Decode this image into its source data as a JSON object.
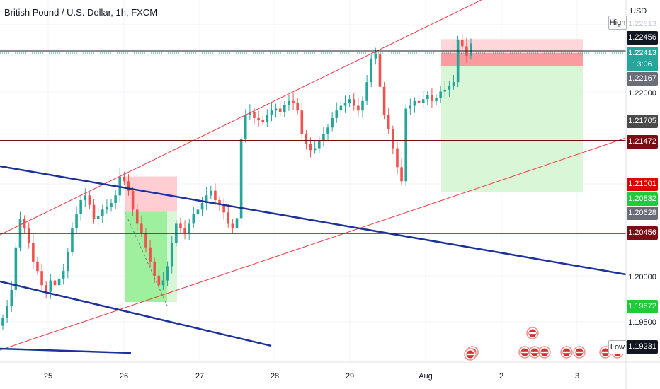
{
  "chart": {
    "title": "British Pound / U.S. Dollar, 1h, FXCM",
    "currency": "USD",
    "high_label": "High",
    "low_label": "Low"
  },
  "price_tags": [
    {
      "key": "faded_top",
      "text": "1.22813",
      "bg": "#ffffff",
      "fg": "#c7c9d1"
    },
    {
      "key": "high",
      "text": "1.22456",
      "bg": "#131722",
      "fg": "#ffffff"
    },
    {
      "key": "last",
      "text": "1.22413",
      "bg": "#26a69a",
      "fg": "#ffffff"
    },
    {
      "key": "countdown",
      "text": "13:06",
      "bg": "#26a69a",
      "fg": "#ffffff"
    },
    {
      "key": "entry",
      "text": "1.22167",
      "bg": "#6a6d78",
      "fg": "#ffffff"
    },
    {
      "key": "tick",
      "text": "1.22000",
      "bg": "transparent",
      "fg": "#131722"
    },
    {
      "key": "prev_close",
      "text": "1.21705",
      "bg": "#4a4a4a",
      "fg": "#ffffff"
    },
    {
      "key": "level_a",
      "text": "1.21472",
      "bg": "#7b0e14",
      "fg": "#ffffff"
    },
    {
      "key": "red_tag",
      "text": "1.21001",
      "bg": "#e00000",
      "fg": "#ffffff"
    },
    {
      "key": "green_tag",
      "text": "1.20832",
      "bg": "#1ecc39",
      "fg": "#ffffff"
    },
    {
      "key": "gray_tag",
      "text": "1.20628",
      "bg": "#6a6d78",
      "fg": "#ffffff"
    },
    {
      "key": "level_b",
      "text": "1.20456",
      "bg": "#7b0e14",
      "fg": "#ffffff"
    },
    {
      "key": "tick2",
      "text": "1.20000",
      "bg": "transparent",
      "fg": "#131722"
    },
    {
      "key": "green_tag2",
      "text": "1.19672",
      "bg": "#1ecc39",
      "fg": "#ffffff"
    },
    {
      "key": "tick3",
      "text": "1.19500",
      "bg": "transparent",
      "fg": "#131722"
    },
    {
      "key": "low",
      "text": "1.19231",
      "bg": "#131722",
      "fg": "#ffffff"
    }
  ],
  "chart_data": {
    "type": "candlestick",
    "symbol": "GBPUSD",
    "timeframe": "1h",
    "x_tick_labels": [
      "25",
      "26",
      "27",
      "28",
      "29",
      "Aug",
      "2",
      "3"
    ],
    "y_tick_labels": [
      "1.22000",
      "1.20000",
      "1.19500"
    ],
    "y_range": [
      1.1905,
      1.2287
    ],
    "closes": [
      1.195,
      1.1963,
      1.198,
      1.2025,
      1.2055,
      1.2045,
      1.203,
      1.201,
      1.2,
      1.1985,
      1.1978,
      1.199,
      1.1985,
      1.1992,
      1.2,
      1.202,
      1.2045,
      1.206,
      1.2075,
      1.208,
      1.207,
      1.2055,
      1.2058,
      1.2065,
      1.2068,
      1.2072,
      1.208,
      1.21,
      1.2095,
      1.2085,
      1.2065,
      1.205,
      1.204,
      1.2025,
      1.201,
      1.1995,
      1.1985,
      1.199,
      1.2005,
      1.203,
      1.205,
      1.2045,
      1.204,
      1.205,
      1.206,
      1.2065,
      1.2072,
      1.208,
      1.2085,
      1.2075,
      1.207,
      1.2062,
      1.205,
      1.2045,
      1.2056,
      1.214,
      1.2165,
      1.2168,
      1.2162,
      1.216,
      1.2158,
      1.2165,
      1.217,
      1.2172,
      1.2168,
      1.2176,
      1.218,
      1.2178,
      1.217,
      1.2145,
      1.2135,
      1.2128,
      1.213,
      1.2138,
      1.2145,
      1.2152,
      1.2162,
      1.217,
      1.2175,
      1.2178,
      1.2182,
      1.2175,
      1.217,
      1.218,
      1.22,
      1.2225,
      1.223,
      1.2195,
      1.2165,
      1.215,
      1.213,
      1.211,
      1.2095,
      1.2172,
      1.2175,
      1.218,
      1.2178,
      1.2182,
      1.2186,
      1.218,
      1.2183,
      1.219,
      1.2192,
      1.2196,
      1.22,
      1.2245,
      1.2238,
      1.2228,
      1.2241
    ],
    "upper_channel": {
      "points": [
        [
          "25 00:00",
          1.205
        ],
        [
          "Aug 00:00",
          1.2287
        ]
      ]
    },
    "lower_channel": {
      "points": [
        [
          "25 00:00",
          1.193
        ],
        [
          "Aug 20:00",
          1.213
        ]
      ]
    },
    "horizontal_levels": [
      1.22456,
      1.21472,
      1.20456
    ],
    "long_position_current": {
      "entry": 1.22167,
      "stop": 1.22456,
      "target": 1.20832
    },
    "long_position_past": {
      "entry": 1.20628,
      "stop": 1.21001,
      "target": 1.19672
    }
  }
}
